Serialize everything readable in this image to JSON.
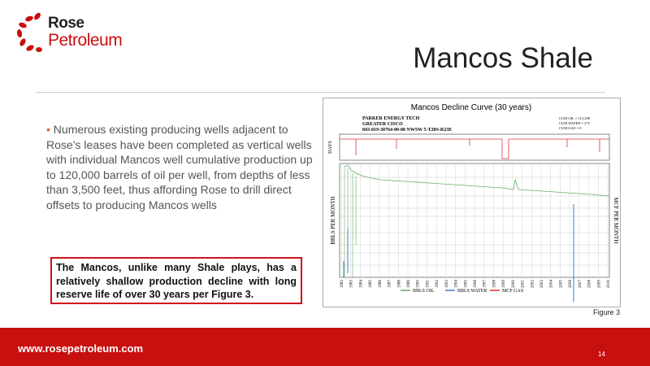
{
  "logo": {
    "line1": "Rose",
    "line2": "Petroleum"
  },
  "title": "Mancos Shale",
  "bullet": "Numerous existing producing wells adjacent to Rose’s leases have been completed as vertical wells with individual Mancos well cumulative production up to 120,000 barrels of oil per well, from depths of less than 3,500 feet, thus affording Rose to drill direct offsets to producing Mancos wells",
  "callout": "The Mancos, unlike many Shale plays, has a relatively shallow production decline with long reserve life of over 30 years per Figure 3.",
  "figure": {
    "title": "Mancos Decline Curve (30 years)",
    "header": [
      "PARKER ENERGY TECH",
      "GREATER CISCO",
      "843-019-30764-00-00   NWSW 5-T20S-R23E"
    ],
    "cum": [
      "CUM OIL = 115,298",
      "CUM WATER = 275",
      "CUM GAS = 0"
    ],
    "days_label": "DAYS",
    "left_label": "BBLS PER MONTH",
    "right_label": "MCF PER MONTH",
    "years": [
      "1982",
      "1983",
      "1984",
      "1985",
      "1986",
      "1987",
      "1988",
      "1989",
      "1990",
      "1991",
      "1992",
      "1993",
      "1994",
      "1995",
      "1996",
      "1997",
      "1998",
      "1999",
      "2000",
      "2001",
      "2002",
      "2003",
      "2004",
      "2005",
      "2006",
      "2007",
      "2008",
      "2009",
      "2010"
    ],
    "legend": [
      "BBLS OIL",
      "BBLS WATER",
      "MCF GAS"
    ],
    "caption": "Figure 3"
  },
  "footer": {
    "url": "www.rosepetroleum.com",
    "page": "14"
  }
}
